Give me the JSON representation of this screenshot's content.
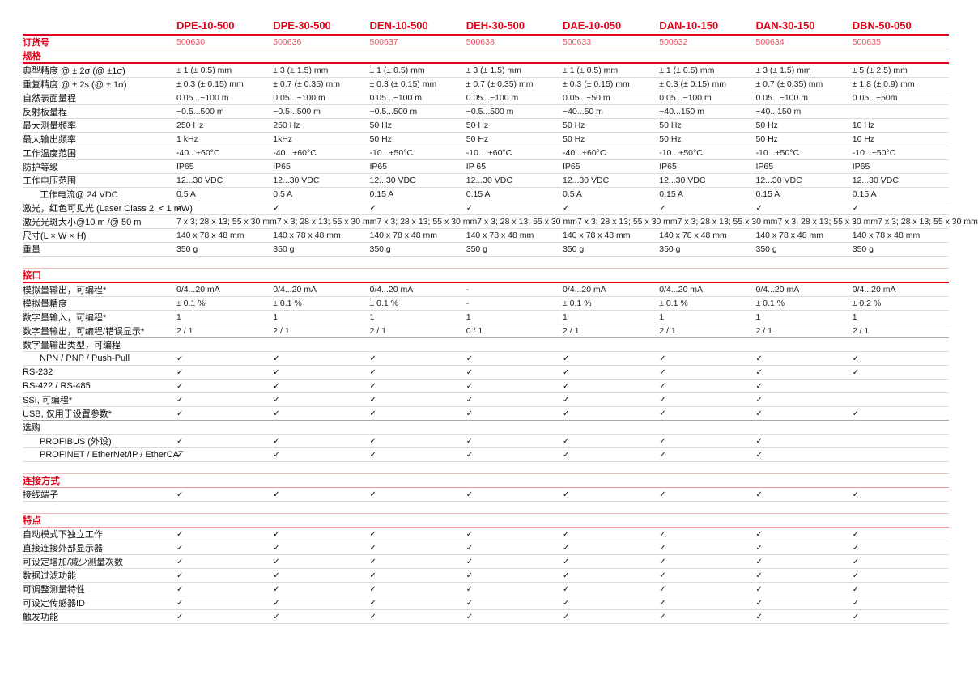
{
  "colors": {
    "accent": "#e2001a",
    "accent_light": "#f2b9b9",
    "row_line": "#dcdcdc",
    "text": "#1a1a1a"
  },
  "icons": {
    "check": "✓"
  },
  "header": {
    "order_label": "订货号",
    "models": [
      "DPE-10-500",
      "DPE-30-500",
      "DEN-10-500",
      "DEH-30-500",
      "DAE-10-050",
      "DAN-10-150",
      "DAN-30-150",
      "DBN-50-050"
    ],
    "order_numbers": [
      "500630",
      "500636",
      "500637",
      "500638",
      "500633",
      "500632",
      "500634",
      "500635"
    ]
  },
  "sections": [
    {
      "title": "规格",
      "name": "section-specifications",
      "rows": [
        {
          "label": "典型精度 @ ± 2σ (@ ±1σ)",
          "values": [
            "± 1 (± 0.5) mm",
            "± 3 (± 1.5) mm",
            "± 1 (± 0.5) mm",
            "± 3 (± 1.5) mm",
            "± 1 (± 0.5) mm",
            "± 1 (± 0.5) mm",
            "± 3 (± 1.5) mm",
            "± 5 (± 2.5) mm"
          ]
        },
        {
          "label": "重复精度 @ ± 2s (@ ± 1σ)",
          "values": [
            "± 0.3 (± 0.15) mm",
            "± 0.7 (± 0.35) mm",
            "± 0.3 (± 0.15) mm",
            "± 0.7 (± 0.35) mm",
            "± 0.3 (± 0.15) mm",
            "± 0.3 (± 0.15) mm",
            "± 0.7 (± 0.35) mm",
            "± 1.8 (± 0.9) mm"
          ]
        },
        {
          "label": "自然表面量程",
          "values": [
            "0.05...~100 m",
            "0.05...~100 m",
            "0.05...~100 m",
            "0.05...~100 m",
            "0.05...~50 m",
            "0.05...~100 m",
            "0.05...~100 m",
            "0.05...~50m"
          ]
        },
        {
          "label": "反射板量程",
          "values": [
            "~0.5...500 m",
            "~0.5...500 m",
            "~0.5...500 m",
            "~0.5...500 m",
            "~40...50 m",
            "~40...150 m",
            "~40...150 m",
            ""
          ]
        },
        {
          "label": "最大测量频率",
          "values": [
            "250 Hz",
            "250 Hz",
            "50 Hz",
            "50 Hz",
            "50 Hz",
            "50 Hz",
            "50 Hz",
            "10 Hz"
          ]
        },
        {
          "label": "最大输出频率",
          "values": [
            "1 kHz",
            "1kHz",
            "50 Hz",
            "50 Hz",
            "50 Hz",
            "50 Hz",
            "50 Hz",
            "10 Hz"
          ]
        },
        {
          "label": "工作温度范围",
          "values": [
            "-40...+60°C",
            "-40...+60°C",
            "-10...+50°C",
            "-10... +60°C",
            "-40...+60°C",
            "-10...+50°C",
            "-10...+50°C",
            "-10...+50°C"
          ]
        },
        {
          "label": "防护等级",
          "values": [
            "IP65",
            "IP65",
            "IP65",
            "IP 65",
            "IP65",
            "IP65",
            "IP65",
            "IP65"
          ]
        },
        {
          "label": "工作电压范围",
          "values": [
            "12...30 VDC",
            "12...30 VDC",
            "12...30 VDC",
            "12...30 VDC",
            "12...30 VDC",
            "12...30 VDC",
            "12...30 VDC",
            "12...30 VDC"
          ]
        },
        {
          "label": "工作电流@ 24 VDC",
          "indent": true,
          "values": [
            "0.5 A",
            "0.5 A",
            "0.15 A",
            "0.15 A",
            "0.5 A",
            "0.15 A",
            "0.15 A",
            "0.15 A"
          ]
        },
        {
          "label": "激光，红色可见光 (Laser Class 2, < 1 mW)",
          "values": [
            "✓",
            "✓",
            "✓",
            "✓",
            "✓",
            "✓",
            "✓",
            "✓"
          ]
        },
        {
          "label": "激光光斑大小@10 m /@ 50 m",
          "values": [
            "7 x 3; 28 x 13; 55 x 30 mm",
            "7 x 3; 28 x 13; 55 x 30 mm",
            "7 x 3; 28 x 13; 55 x 30 mm",
            "7 x 3; 28 x 13; 55 x 30 mm",
            "7 x 3; 28 x 13; 55 x 30 mm",
            "7 x 3; 28 x 13; 55 x 30 mm",
            "7 x 3; 28 x 13; 55 x 30 mm",
            "7 x 3; 28 x 13; 55 x 30 mm"
          ]
        },
        {
          "label": "尺寸(L × W × H)",
          "values": [
            "140 x 78 x 48 mm",
            "140 x 78 x 48 mm",
            "140 x 78 x 48 mm",
            "140 x 78 x 48 mm",
            "140 x 78 x 48 mm",
            "140 x 78 x 48 mm",
            "140 x 78 x 48 mm",
            "140 x 78 x 48 mm"
          ]
        },
        {
          "label": "重量",
          "values": [
            "350 g",
            "350 g",
            "350 g",
            "350 g",
            "350 g",
            "350 g",
            "350 g",
            "350 g"
          ]
        }
      ]
    },
    {
      "title": "接口",
      "name": "section-interface",
      "rows": [
        {
          "label": "模拟量输出，可编程*",
          "values": [
            "0/4...20 mA",
            "0/4...20 mA",
            "0/4...20 mA",
            "-",
            "0/4...20 mA",
            "0/4...20 mA",
            "0/4...20 mA",
            "0/4...20 mA"
          ]
        },
        {
          "label": "模拟量精度",
          "values": [
            "± 0.1 %",
            "± 0.1 %",
            "± 0.1 %",
            "-",
            "± 0.1 %",
            "± 0.1 %",
            "± 0.1 %",
            "± 0.2 %"
          ]
        },
        {
          "label": "数字量输入，可编程*",
          "values": [
            "1",
            "1",
            "1",
            "1",
            "1",
            "1",
            "1",
            "1"
          ]
        },
        {
          "label": "数字量输出，可编程/错误显示*",
          "divider": true,
          "values": [
            "2 / 1",
            "2 / 1",
            "2 / 1",
            "0 / 1",
            "2 / 1",
            "2 / 1",
            "2 / 1",
            "2 / 1"
          ]
        },
        {
          "label": "数字量输出类型，可编程",
          "subheader": true,
          "values": [
            "",
            "",
            "",
            "",
            "",
            "",
            "",
            ""
          ]
        },
        {
          "label": "NPN / PNP / Push-Pull",
          "indent": true,
          "values": [
            "✓",
            "✓",
            "✓",
            "✓",
            "✓",
            "✓",
            "✓",
            "✓"
          ]
        },
        {
          "label": "RS-232",
          "values": [
            "✓",
            "✓",
            "✓",
            "✓",
            "✓",
            "✓",
            "✓",
            "✓"
          ]
        },
        {
          "label": "RS-422 / RS-485",
          "values": [
            "✓",
            "✓",
            "✓",
            "✓",
            "✓",
            "✓",
            "✓",
            ""
          ]
        },
        {
          "label": "SSI, 可编程*",
          "values": [
            "✓",
            "✓",
            "✓",
            "✓",
            "✓",
            "✓",
            "✓",
            ""
          ]
        },
        {
          "label": "USB, 仅用于设置参数*",
          "divider": true,
          "values": [
            "✓",
            "✓",
            "✓",
            "✓",
            "✓",
            "✓",
            "✓",
            "✓"
          ]
        },
        {
          "label": "选购",
          "subheader": true,
          "values": [
            "",
            "",
            "",
            "",
            "",
            "",
            "",
            ""
          ]
        },
        {
          "label": "PROFIBUS (外设)",
          "indent": true,
          "values": [
            "✓",
            "✓",
            "✓",
            "✓",
            "✓",
            "✓",
            "✓",
            ""
          ]
        },
        {
          "label": "PROFINET / EtherNet/IP / EtherCAT",
          "indent": true,
          "values": [
            "✓",
            "✓",
            "✓",
            "✓",
            "✓",
            "✓",
            "✓",
            ""
          ]
        }
      ]
    },
    {
      "title": "连接方式",
      "name": "section-connection",
      "light": true,
      "rows": [
        {
          "label": "接线端子",
          "values": [
            "✓",
            "✓",
            "✓",
            "✓",
            "✓",
            "✓",
            "✓",
            "✓"
          ]
        }
      ]
    },
    {
      "title": "特点",
      "name": "section-features",
      "light": true,
      "rows": [
        {
          "label": "自动模式下独立工作",
          "values": [
            "✓",
            "✓",
            "✓",
            "✓",
            "✓",
            "✓",
            "✓",
            "✓"
          ]
        },
        {
          "label": "直接连接外部显示器",
          "values": [
            "✓",
            "✓",
            "✓",
            "✓",
            "✓",
            "✓",
            "✓",
            "✓"
          ]
        },
        {
          "label": "可设定增加/减少测量次数",
          "values": [
            "✓",
            "✓",
            "✓",
            "✓",
            "✓",
            "✓",
            "✓",
            "✓"
          ]
        },
        {
          "label": "数据过滤功能",
          "values": [
            "✓",
            "✓",
            "✓",
            "✓",
            "✓",
            "✓",
            "✓",
            "✓"
          ]
        },
        {
          "label": "可调整测量特性",
          "values": [
            "✓",
            "✓",
            "✓",
            "✓",
            "✓",
            "✓",
            "✓",
            "✓"
          ]
        },
        {
          "label": "可设定传感器ID",
          "values": [
            "✓",
            "✓",
            "✓",
            "✓",
            "✓",
            "✓",
            "✓",
            "✓"
          ]
        },
        {
          "label": "触发功能",
          "values": [
            "✓",
            "✓",
            "✓",
            "✓",
            "✓",
            "✓",
            "✓",
            "✓"
          ]
        }
      ]
    }
  ]
}
